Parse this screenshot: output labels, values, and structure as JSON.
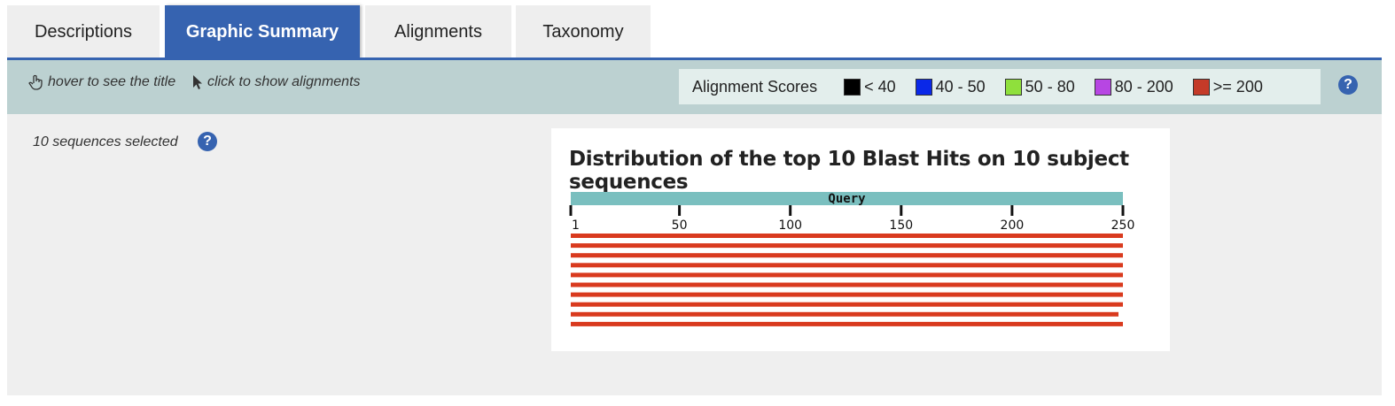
{
  "tabs": [
    {
      "label": "Descriptions",
      "active": false
    },
    {
      "label": "Graphic Summary",
      "active": true
    },
    {
      "label": "Alignments",
      "active": false
    },
    {
      "label": "Taxonomy",
      "active": false
    }
  ],
  "toolbar": {
    "hover_hint": "hover to see the title",
    "click_hint": "click to show alignments",
    "legend": {
      "title": "Alignment Scores",
      "items": [
        {
          "label": "< 40",
          "color": "#000000"
        },
        {
          "label": "40 - 50",
          "color": "#0a28e8"
        },
        {
          "label": "50 - 80",
          "color": "#8fe03c"
        },
        {
          "label": ">80 - 200",
          "color": "#b746e3"
        },
        {
          "label": ">= 200",
          "color": "#c43a28"
        }
      ]
    },
    "help_icon": "?"
  },
  "main": {
    "selected_text": "10 sequences selected",
    "help_icon": "?"
  },
  "chart_data": {
    "type": "bar",
    "title": "Distribution of the top 10 Blast Hits on 10 subject sequences",
    "query_label": "Query",
    "xlim": [
      1,
      250
    ],
    "ticks": [
      "1",
      "50",
      "100",
      "150",
      "200",
      "250"
    ],
    "tick_values": [
      1,
      50,
      100,
      150,
      200,
      250
    ],
    "bar_color": "#d93a1e",
    "query_color": "#7abfbf",
    "hits": [
      {
        "start": 1,
        "end": 250
      },
      {
        "start": 1,
        "end": 250
      },
      {
        "start": 1,
        "end": 250
      },
      {
        "start": 1,
        "end": 250
      },
      {
        "start": 1,
        "end": 250
      },
      {
        "start": 1,
        "end": 250
      },
      {
        "start": 1,
        "end": 250
      },
      {
        "start": 1,
        "end": 250
      },
      {
        "start": 1,
        "end": 248
      },
      {
        "start": 1,
        "end": 250
      }
    ]
  }
}
